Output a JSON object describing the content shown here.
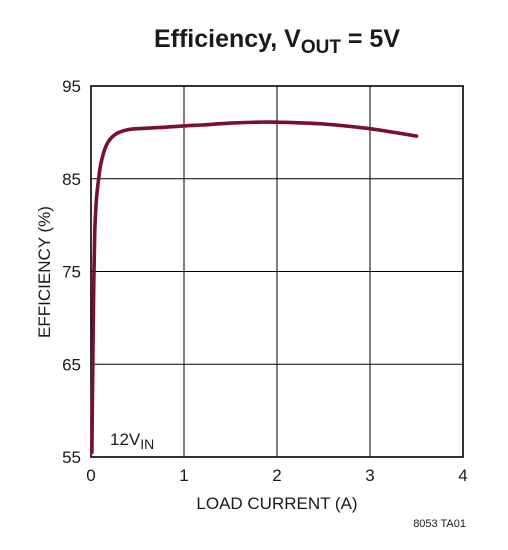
{
  "chart_data": {
    "type": "line",
    "title": {
      "main": "Efficiency, V",
      "sub": "OUT",
      "tail": " = 5V"
    },
    "xlabel": "LOAD CURRENT (A)",
    "ylabel": "EFFICIENCY (%)",
    "xlim": [
      0,
      4
    ],
    "ylim": [
      55,
      95
    ],
    "xticks": [
      0,
      1,
      2,
      3,
      4
    ],
    "yticks": [
      55,
      65,
      75,
      85,
      95
    ],
    "grid": true,
    "line_color": "#7a0f2e",
    "series": [
      {
        "annotation": {
          "main": "12V",
          "sub": "IN"
        },
        "x": [
          0.01,
          0.02,
          0.03,
          0.04,
          0.05,
          0.06,
          0.08,
          0.1,
          0.13,
          0.16,
          0.2,
          0.25,
          0.3,
          0.4,
          0.5,
          0.7,
          1.0,
          1.2,
          1.5,
          1.8,
          2.0,
          2.5,
          3.0,
          3.5
        ],
        "y": [
          55.5,
          66.0,
          74.0,
          79.0,
          81.5,
          83.0,
          84.8,
          86.3,
          87.6,
          88.5,
          89.2,
          89.7,
          90.0,
          90.3,
          90.4,
          90.5,
          90.7,
          90.8,
          91.0,
          91.1,
          91.1,
          90.9,
          90.4,
          89.6
        ]
      }
    ],
    "footnote": "8053 TA01"
  }
}
